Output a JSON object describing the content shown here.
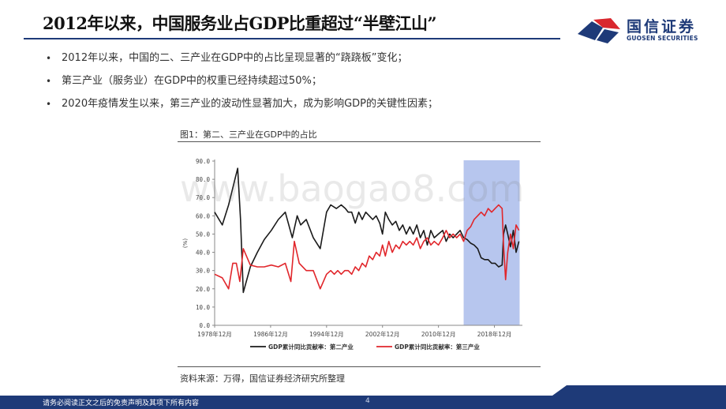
{
  "header": {
    "title": "2012年以来，中国服务业占GDP比重超过“半壁江山”",
    "logo_cn": "国信证券",
    "logo_en": "GUOSEN SECURITIES",
    "colors": {
      "brand_navy": "#1e3a78",
      "brand_red": "#d9272e"
    }
  },
  "bullets": [
    {
      "marker": "•",
      "text": "2012年以来，中国的二、三产业在GDP中的占比呈现显著的“跷跷板”变化；"
    },
    {
      "marker": "•",
      "text": "第三产业（服务业）在GDP中的权重已经持续超过50%；"
    },
    {
      "marker": "•",
      "text": "2020年疫情发生以来，第三产业的波动性显著加大，成为影响GDP的关键性因素；"
    }
  ],
  "figure": {
    "title": "图1：第二、三产业在GDP中的占比",
    "source": "资料来源：万得，国信证券经济研究所整理"
  },
  "watermark": "www.baogao8.com",
  "footer": {
    "disclaimer": "请务必阅读正文之后的免责声明及其项下所有内容",
    "page_number": "4"
  },
  "chart_data": {
    "type": "line",
    "title": "",
    "xlabel": "",
    "ylabel": "(%)",
    "ylim": [
      0,
      90
    ],
    "xlim": [
      1978.9,
      2022.9
    ],
    "yticks": [
      "0.0",
      "10.0",
      "20.0",
      "30.0",
      "40.0",
      "50.0",
      "60.0",
      "70.0",
      "80.0",
      "90.0"
    ],
    "xticks": [
      {
        "x": 1978.9,
        "label": "1978年12月"
      },
      {
        "x": 1986.9,
        "label": "1986年12月"
      },
      {
        "x": 1994.9,
        "label": "1994年12月"
      },
      {
        "x": 2002.9,
        "label": "2002年12月"
      },
      {
        "x": 2010.9,
        "label": "2010年12月"
      },
      {
        "x": 2018.9,
        "label": "2018年12月"
      }
    ],
    "highlight": {
      "x0": 2014.5,
      "x1": 2022.5,
      "color": "#b7c6ee"
    },
    "grid": false,
    "legend_position": "bottom",
    "series": [
      {
        "name": "GDP累计同比贡献率：第二产业",
        "color": "#1a1a1a",
        "points": [
          [
            1978.9,
            62
          ],
          [
            1980,
            55
          ],
          [
            1980.9,
            66
          ],
          [
            1981.8,
            80
          ],
          [
            1982.2,
            86
          ],
          [
            1982.6,
            58
          ],
          [
            1983,
            18
          ],
          [
            1984,
            32
          ],
          [
            1985,
            40
          ],
          [
            1986,
            47
          ],
          [
            1987,
            52
          ],
          [
            1988,
            58
          ],
          [
            1989,
            62
          ],
          [
            1990,
            48
          ],
          [
            1990.7,
            60
          ],
          [
            1991.2,
            55
          ],
          [
            1992,
            58
          ],
          [
            1993,
            48
          ],
          [
            1994,
            42
          ],
          [
            1994.9,
            62
          ],
          [
            1995.5,
            66
          ],
          [
            1996.3,
            64
          ],
          [
            1997,
            66
          ],
          [
            1997.6,
            64
          ],
          [
            1998,
            62
          ],
          [
            1998.5,
            62
          ],
          [
            1999,
            56
          ],
          [
            1999.5,
            62
          ],
          [
            2000,
            58
          ],
          [
            2000.5,
            62
          ],
          [
            2001,
            60
          ],
          [
            2001.5,
            58
          ],
          [
            2002,
            60
          ],
          [
            2002.5,
            56
          ],
          [
            2002.9,
            50
          ],
          [
            2003.3,
            62
          ],
          [
            2003.8,
            58
          ],
          [
            2004.3,
            55
          ],
          [
            2004.8,
            57
          ],
          [
            2005.3,
            52
          ],
          [
            2005.8,
            55
          ],
          [
            2006.3,
            50
          ],
          [
            2006.8,
            54
          ],
          [
            2007.3,
            50
          ],
          [
            2007.8,
            55
          ],
          [
            2008.3,
            48
          ],
          [
            2008.8,
            52
          ],
          [
            2009.3,
            44
          ],
          [
            2009.8,
            52
          ],
          [
            2010.3,
            48
          ],
          [
            2010.9,
            50
          ],
          [
            2011.5,
            52
          ],
          [
            2012,
            46
          ],
          [
            2012.5,
            50
          ],
          [
            2013,
            48
          ],
          [
            2013.5,
            50
          ],
          [
            2014,
            52
          ],
          [
            2014.5,
            48
          ],
          [
            2015,
            47
          ],
          [
            2015.5,
            45
          ],
          [
            2016,
            44
          ],
          [
            2016.5,
            42
          ],
          [
            2017,
            37
          ],
          [
            2017.5,
            36
          ],
          [
            2018,
            36
          ],
          [
            2018.5,
            34
          ],
          [
            2019,
            34
          ],
          [
            2019.5,
            32
          ],
          [
            2020,
            33
          ],
          [
            2020.2,
            50
          ],
          [
            2020.5,
            55
          ],
          [
            2020.8,
            50
          ],
          [
            2021.2,
            43
          ],
          [
            2021.6,
            52
          ],
          [
            2022,
            40
          ],
          [
            2022.4,
            46
          ]
        ]
      },
      {
        "name": "GDP累计同比贡献率：第三产业",
        "color": "#e1262b",
        "points": [
          [
            1978.9,
            28
          ],
          [
            1980,
            26
          ],
          [
            1980.9,
            20
          ],
          [
            1981.5,
            34
          ],
          [
            1982,
            34
          ],
          [
            1982.5,
            24
          ],
          [
            1983,
            42
          ],
          [
            1984,
            33
          ],
          [
            1985,
            32
          ],
          [
            1986,
            32
          ],
          [
            1987,
            33
          ],
          [
            1988,
            32
          ],
          [
            1989,
            34
          ],
          [
            1989.8,
            24
          ],
          [
            1990.3,
            46
          ],
          [
            1991,
            34
          ],
          [
            1992,
            30
          ],
          [
            1993,
            30
          ],
          [
            1994,
            20
          ],
          [
            1994.9,
            28
          ],
          [
            1995.5,
            30
          ],
          [
            1996,
            28
          ],
          [
            1996.5,
            30
          ],
          [
            1997,
            28
          ],
          [
            1997.5,
            30
          ],
          [
            1998,
            30
          ],
          [
            1998.5,
            28
          ],
          [
            1999,
            32
          ],
          [
            1999.5,
            30
          ],
          [
            2000,
            34
          ],
          [
            2000.5,
            32
          ],
          [
            2001,
            38
          ],
          [
            2001.5,
            36
          ],
          [
            2002,
            40
          ],
          [
            2002.5,
            38
          ],
          [
            2002.9,
            44
          ],
          [
            2003.3,
            38
          ],
          [
            2003.8,
            46
          ],
          [
            2004.3,
            40
          ],
          [
            2004.8,
            44
          ],
          [
            2005.3,
            42
          ],
          [
            2005.8,
            46
          ],
          [
            2006.3,
            44
          ],
          [
            2006.8,
            46
          ],
          [
            2007.3,
            44
          ],
          [
            2007.8,
            48
          ],
          [
            2008.3,
            42
          ],
          [
            2008.8,
            46
          ],
          [
            2009.3,
            48
          ],
          [
            2009.8,
            44
          ],
          [
            2010.3,
            46
          ],
          [
            2010.9,
            44
          ],
          [
            2011.5,
            48
          ],
          [
            2012,
            52
          ],
          [
            2012.5,
            48
          ],
          [
            2013,
            50
          ],
          [
            2013.5,
            48
          ],
          [
            2014,
            50
          ],
          [
            2014.5,
            46
          ],
          [
            2015,
            52
          ],
          [
            2015.5,
            54
          ],
          [
            2016,
            58
          ],
          [
            2016.5,
            60
          ],
          [
            2017,
            62
          ],
          [
            2017.5,
            60
          ],
          [
            2018,
            64
          ],
          [
            2018.5,
            62
          ],
          [
            2019,
            64
          ],
          [
            2019.5,
            66
          ],
          [
            2020,
            64
          ],
          [
            2020.2,
            44
          ],
          [
            2020.5,
            25
          ],
          [
            2020.8,
            40
          ],
          [
            2021.2,
            50
          ],
          [
            2021.6,
            42
          ],
          [
            2022,
            55
          ],
          [
            2022.4,
            52
          ]
        ]
      }
    ]
  }
}
